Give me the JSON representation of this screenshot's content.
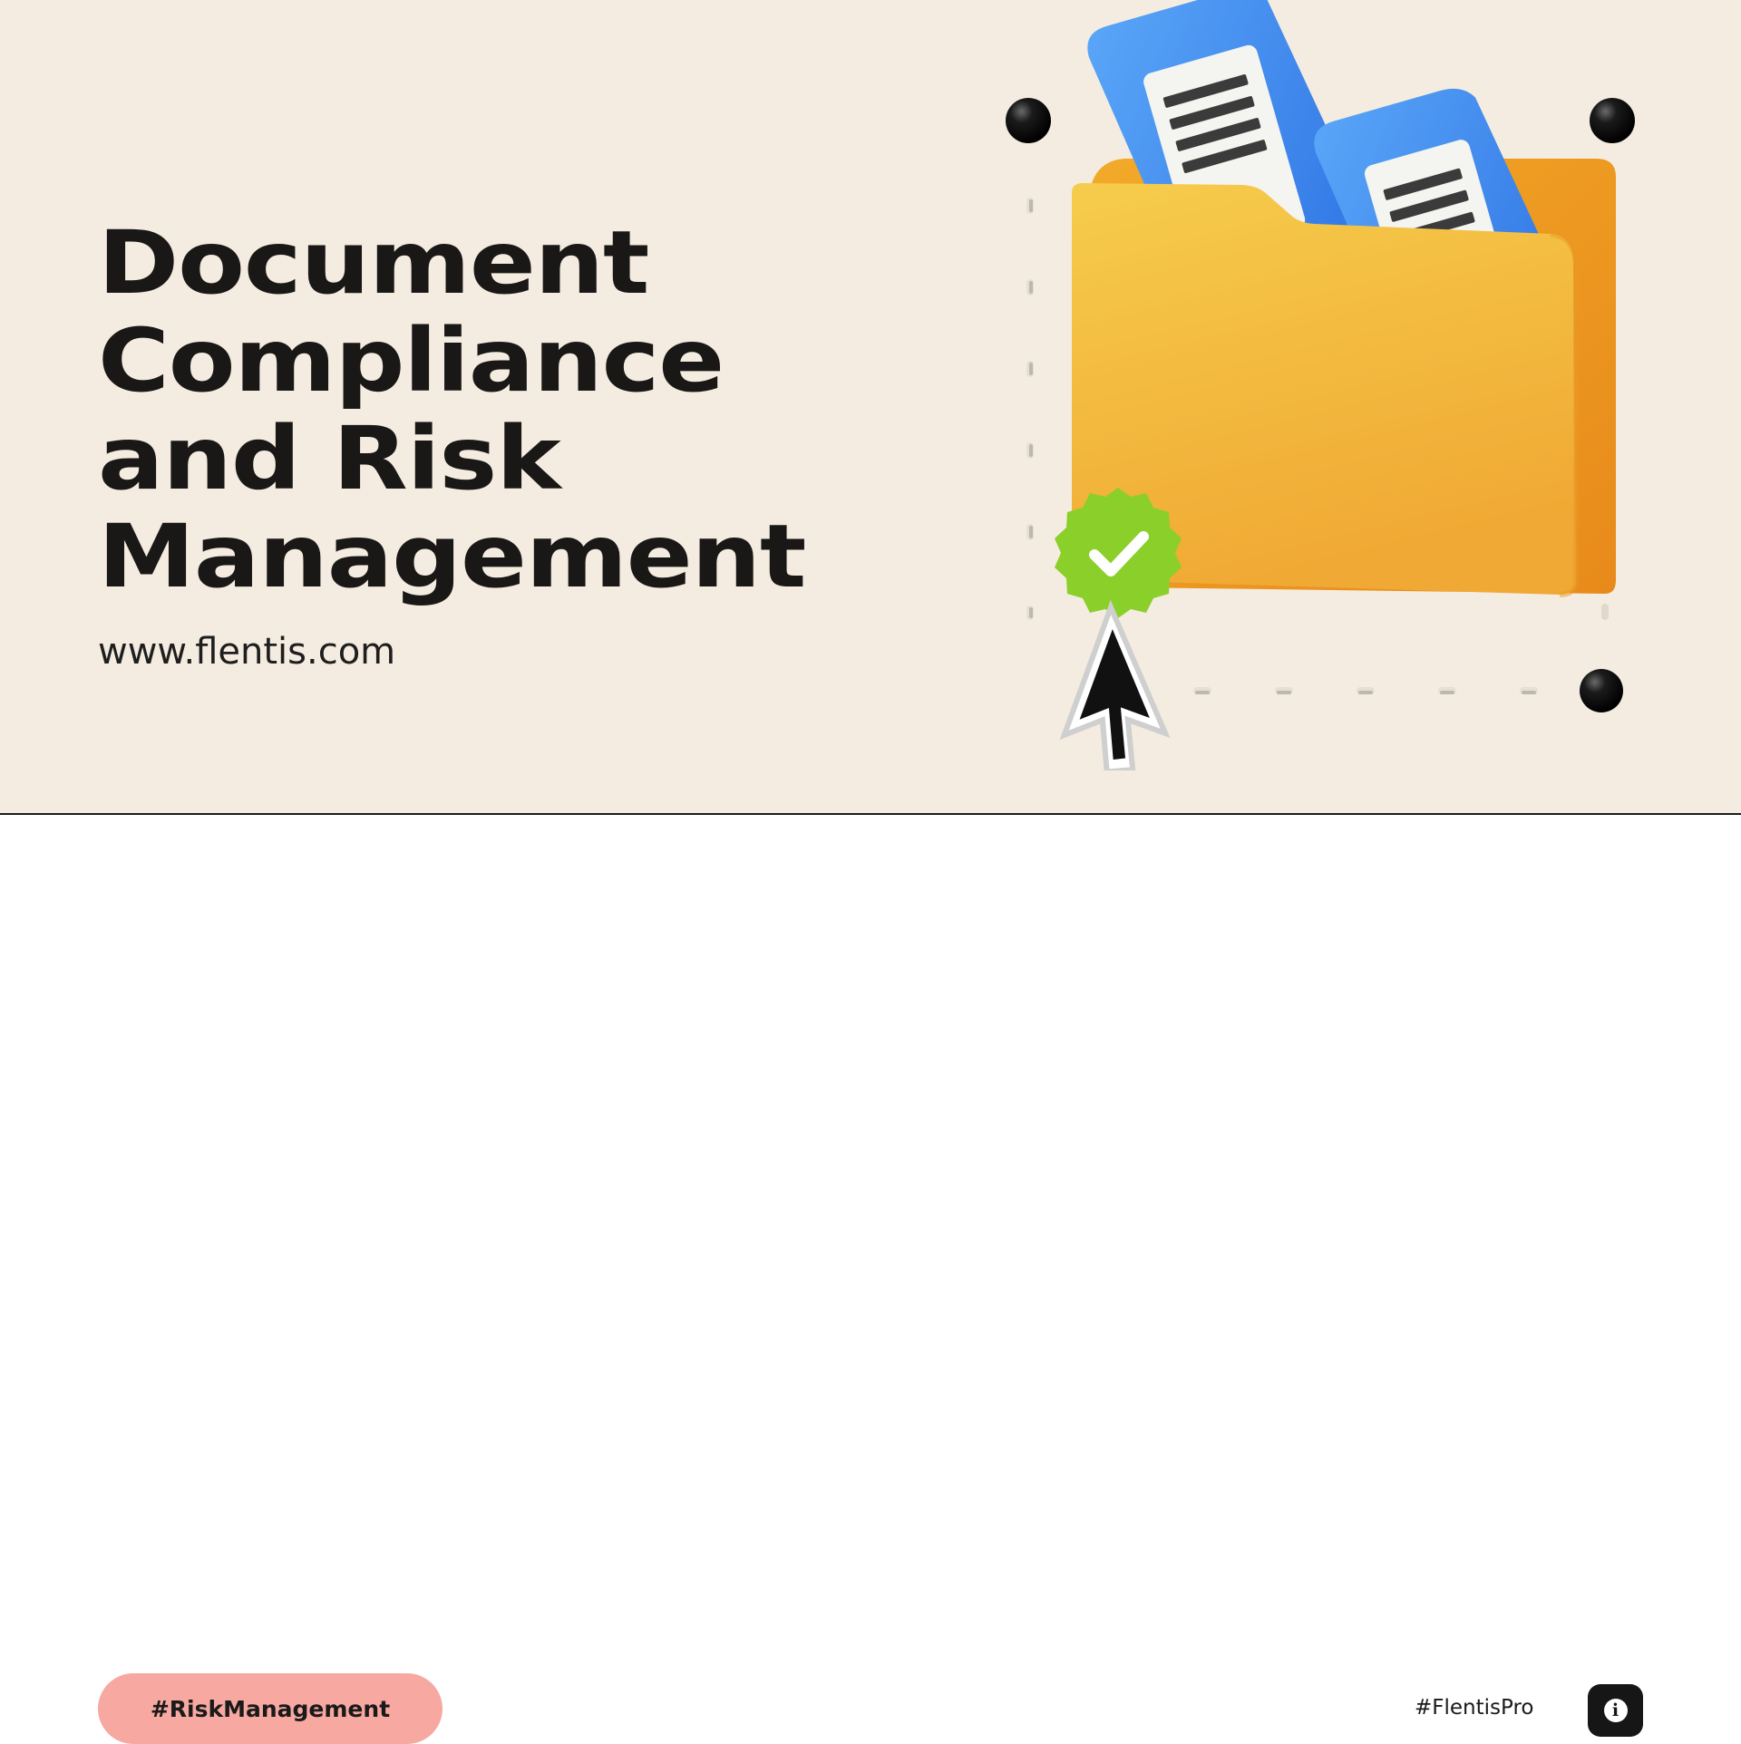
{
  "hero": {
    "title_lines": [
      "Document",
      "Compliance",
      "and Risk",
      "Management"
    ],
    "website": "www.flentis.com"
  },
  "illustration": {
    "icons": [
      "folder-icon",
      "document-icon",
      "checkmark-badge-icon",
      "cursor-arrow-icon"
    ],
    "colors": {
      "background": "#f4ece0",
      "folder": "#f3bb3b",
      "document_card": "#3f8bf0",
      "badge": "#8bcf2a",
      "handles": "#111111"
    }
  },
  "footer": {
    "hashtag_pill": "#RiskManagement",
    "handle": "#FlentisPro",
    "info_icon": "info-icon"
  },
  "colors": {
    "pill": "#f7a8a1",
    "text": "#1a1717",
    "info_button": "#161616"
  }
}
